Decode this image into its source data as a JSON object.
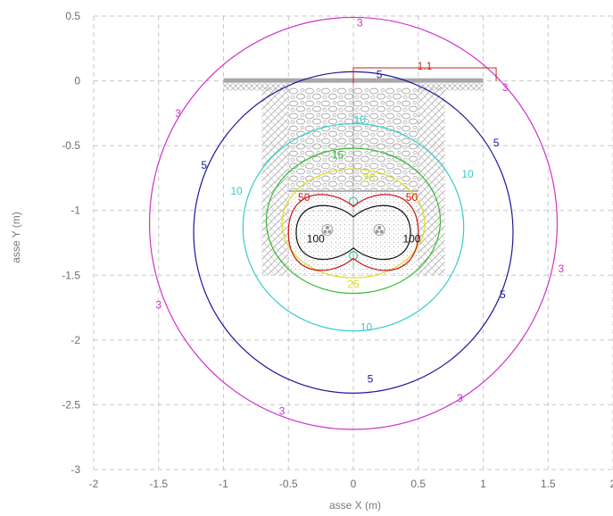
{
  "chart_data": {
    "type": "contour",
    "xlabel": "asse X (m)",
    "ylabel": "asse Y (m)",
    "xlim": [
      -2,
      2
    ],
    "ylim": [
      -3,
      0.5
    ],
    "xticks": [
      "-2",
      "-1.5",
      "-1",
      "-0.5",
      "0",
      "0.5",
      "1",
      "1.5",
      "2"
    ],
    "yticks": [
      "0.5",
      "0",
      "-0.5",
      "-1",
      "-1.5",
      "-2",
      "-2.5",
      "-3"
    ],
    "grid": true,
    "dimension_label": "1.1",
    "contours": [
      {
        "level": "3",
        "color": "#cc33cc",
        "cx": 0.0,
        "cy": -1.1,
        "rx": 1.57,
        "ry": 1.59,
        "labels": [
          [
            0.05,
            0.45
          ],
          [
            1.17,
            -0.05
          ],
          [
            -1.35,
            -0.25
          ],
          [
            1.6,
            -1.45
          ],
          [
            -1.5,
            -1.73
          ],
          [
            0.82,
            -2.45
          ],
          [
            -0.55,
            -2.55
          ]
        ]
      },
      {
        "level": "5",
        "color": "#1a1a99",
        "cx": 0.0,
        "cy": -1.17,
        "rx": 1.23,
        "ry": 1.24,
        "labels": [
          [
            0.2,
            0.05
          ],
          [
            -1.15,
            -0.65
          ],
          [
            1.1,
            -0.48
          ],
          [
            1.15,
            -1.65
          ],
          [
            0.13,
            -2.3
          ]
        ]
      },
      {
        "level": "10",
        "color": "#33cccc",
        "cx": 0.0,
        "cy": -1.13,
        "rx": 0.85,
        "ry": 0.8,
        "labels": [
          [
            0.05,
            -0.3
          ],
          [
            -0.9,
            -0.85
          ],
          [
            0.88,
            -0.72
          ],
          [
            0.1,
            -1.9
          ]
        ]
      },
      {
        "level": "15",
        "color": "#33bb33",
        "cx": 0.0,
        "cy": -1.08,
        "rx": 0.67,
        "ry": 0.56,
        "labels": [
          [
            -0.12,
            -0.57
          ]
        ]
      },
      {
        "level": "25",
        "color": "#dddd22",
        "cx": 0.0,
        "cy": -1.1,
        "rx": 0.55,
        "ry": 0.42,
        "labels": [
          [
            0.12,
            -0.75
          ],
          [
            0.0,
            -1.57
          ]
        ]
      }
    ],
    "inner_labels": [
      {
        "text": "50",
        "color": "#cc1111",
        "pos": [
          [
            -0.38,
            -0.9
          ],
          [
            0.45,
            -0.9
          ]
        ]
      },
      {
        "text": "100",
        "color": "#111111",
        "pos": [
          [
            -0.29,
            -1.22
          ],
          [
            0.45,
            -1.22
          ]
        ]
      }
    ]
  }
}
